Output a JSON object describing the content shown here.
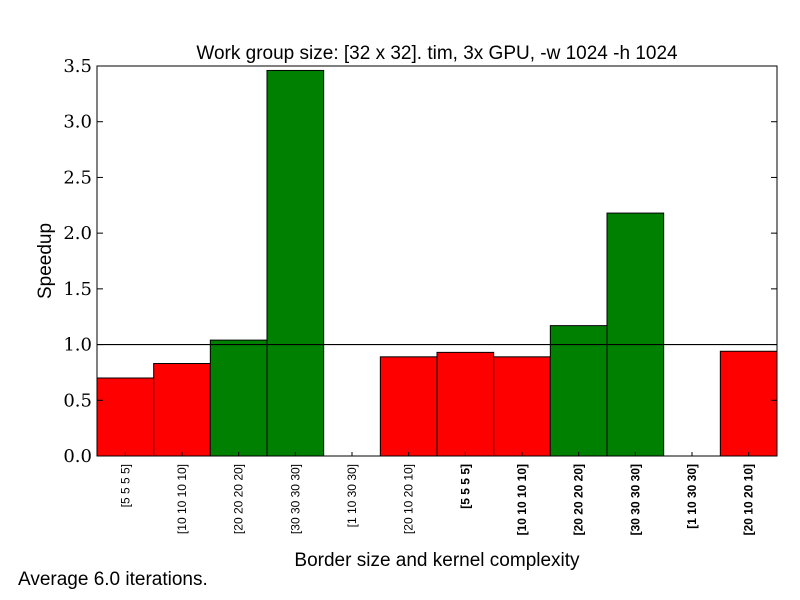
{
  "chart_data": {
    "type": "bar",
    "title": "Work group size: [32 x 32]. tim, 3x GPU, -w 1024 -h 1024",
    "xlabel": "Border size and kernel complexity",
    "ylabel": "Speedup",
    "ylim": [
      0,
      3.5
    ],
    "yticks": [
      "0.0",
      "0.5",
      "1.0",
      "1.5",
      "2.0",
      "2.5",
      "3.0",
      "3.5"
    ],
    "reference_line": 1.0,
    "categories": [
      "[5 5 5 5]",
      "[10 10 10 10]",
      "[20 20 20 20]",
      "[30 30 30 30]",
      "[1 10 30 30]",
      "[20 10 20 10]",
      "[5 5 5 5]",
      "[10 10 10 10]",
      "[20 20 20 20]",
      "[30 30 30 30]",
      "[1 10 30 30]",
      "[20 10 20 10]"
    ],
    "category_bold": [
      false,
      false,
      false,
      false,
      false,
      false,
      true,
      true,
      true,
      true,
      true,
      true
    ],
    "values": [
      0.7,
      0.83,
      1.04,
      3.46,
      0.0,
      0.89,
      0.93,
      0.89,
      1.17,
      2.18,
      0.0,
      0.94
    ],
    "colors": {
      "above_one": "#008000",
      "below_one": "#ff0000",
      "edge": "#000000"
    },
    "grid": false
  },
  "footnote": "Average 6.0 iterations."
}
